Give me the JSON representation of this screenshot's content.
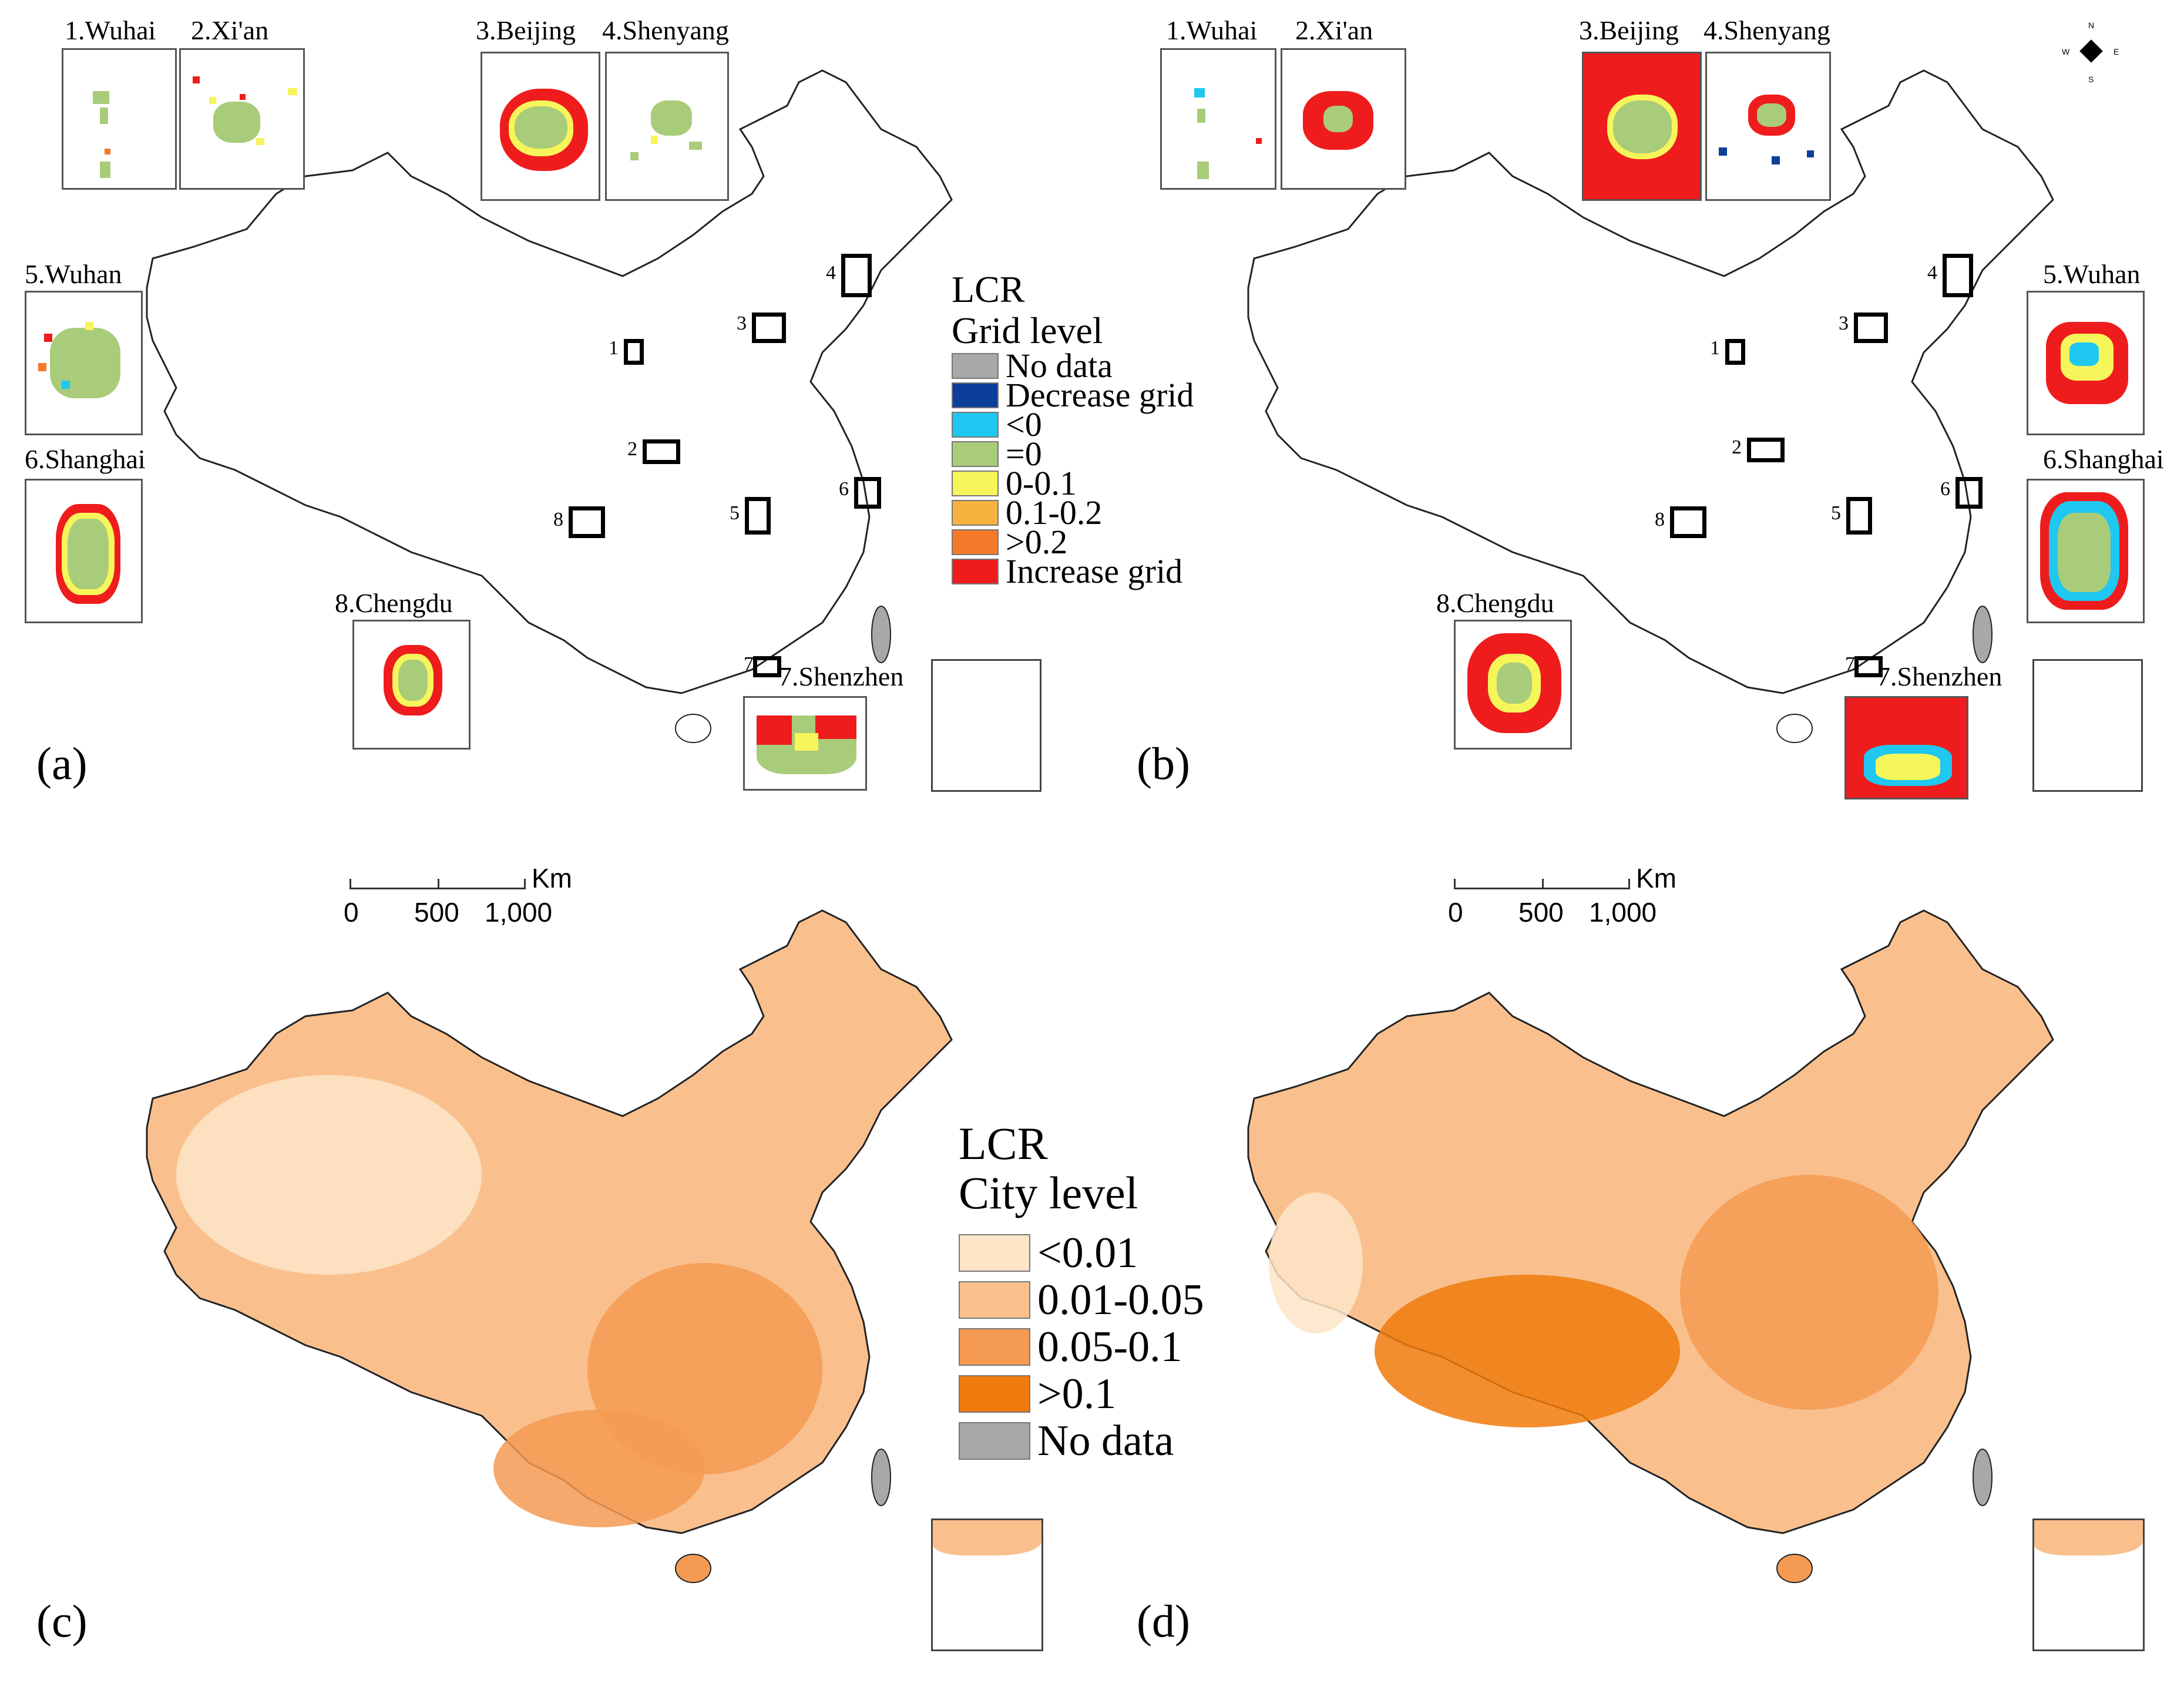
{
  "panels": [
    "(a)",
    "(b)",
    "(c)",
    "(d)"
  ],
  "grid_legend": {
    "title_line1": "LCR",
    "title_line2": "Grid level",
    "items": [
      {
        "label": "No data",
        "color": "#a8a8a8"
      },
      {
        "label": "Decrease grid",
        "color": "#0b3f99"
      },
      {
        "label": "<0",
        "color": "#1ec8f0"
      },
      {
        "label": "=0",
        "color": "#a9cc7a"
      },
      {
        "label": "0-0.1",
        "color": "#f6f55a"
      },
      {
        "label": "0.1-0.2",
        "color": "#f7b340"
      },
      {
        "label": ">0.2",
        "color": "#f47a2a"
      },
      {
        "label": "Increase grid",
        "color": "#ee1c1c"
      }
    ]
  },
  "city_legend": {
    "title_line1": "LCR",
    "title_line2": "City level",
    "items": [
      {
        "label": "<0.01",
        "color": "#fde5c8"
      },
      {
        "label": "0.01-0.05",
        "color": "#f9c08e"
      },
      {
        "label": "0.05-0.1",
        "color": "#f59a52"
      },
      {
        "label": ">0.1",
        "color": "#f07a0c"
      },
      {
        "label": "No data",
        "color": "#a8a8a8"
      }
    ]
  },
  "scale_bar": {
    "unit": "Km",
    "ticks": [
      "0",
      "500",
      "1,000"
    ]
  },
  "insets": [
    "1.Wuhai",
    "2.Xi'an",
    "3.Beijing",
    "4.Shenyang",
    "5.Wuhan",
    "6.Shanghai",
    "7.Shenzhen",
    "8.Chengdu"
  ],
  "location_labels": [
    "1",
    "2",
    "3",
    "4",
    "5",
    "6",
    "7",
    "8"
  ],
  "compass": {
    "n": "N",
    "s": "S",
    "e": "E",
    "w": "W"
  }
}
